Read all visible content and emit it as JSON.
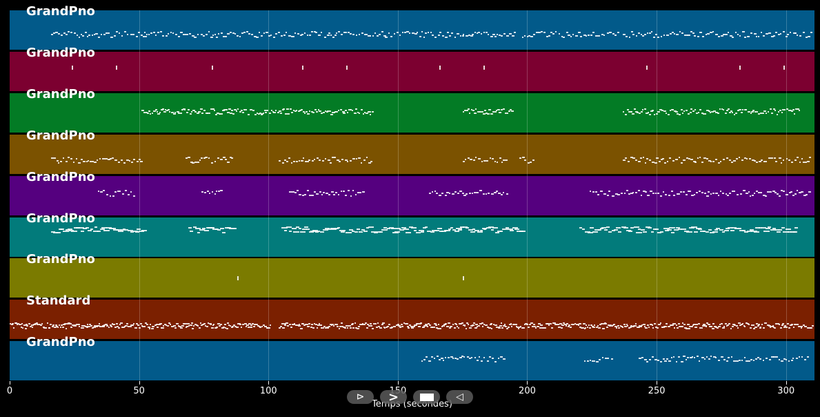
{
  "chart_data": {
    "type": "scatter",
    "subtype": "piano-roll",
    "title": "",
    "xlabel": "Temps (secondes)",
    "ylabel": "",
    "xlim": [
      0,
      311
    ],
    "x_ticks": [
      0,
      50,
      100,
      150,
      200,
      250,
      300
    ],
    "grid": "vertical",
    "tracks": [
      {
        "name": "GrandPno",
        "color": "#025a8a",
        "segments": [
          [
            16,
            52
          ],
          [
            52,
            98
          ],
          [
            98,
            145
          ],
          [
            145,
            175
          ],
          [
            175,
            195
          ],
          [
            198,
            235
          ],
          [
            237,
            310
          ]
        ],
        "dense_note_ranges": [
          [
            175,
            194
          ]
        ]
      },
      {
        "name": "GrandPno",
        "color": "#7c0030",
        "note_times": [
          24,
          41,
          78,
          113,
          130,
          166,
          183,
          246,
          282,
          299
        ]
      },
      {
        "name": "GrandPno",
        "color": "#037b25",
        "segments": [
          [
            51,
            140
          ],
          [
            175,
            194
          ],
          [
            237,
            305
          ]
        ]
      },
      {
        "name": "GrandPno",
        "color": "#7b5200",
        "segments": [
          [
            16,
            51
          ],
          [
            68,
            86
          ],
          [
            104,
            140
          ],
          [
            175,
            192
          ],
          [
            197,
            202
          ],
          [
            237,
            309
          ]
        ]
      },
      {
        "name": "GrandPno",
        "color": "#55007f",
        "segments": [
          [
            34,
            48
          ],
          [
            74,
            82
          ],
          [
            108,
            137
          ],
          [
            162,
            192
          ],
          [
            224,
            309
          ]
        ]
      },
      {
        "name": "GrandPno",
        "color": "#027b7b",
        "segments": [
          [
            16,
            51
          ],
          [
            69,
            86
          ],
          [
            105,
            198
          ],
          [
            220,
            304
          ]
        ]
      },
      {
        "name": "GrandPno",
        "color": "#7b7b00",
        "note_times": [
          88,
          175
        ]
      },
      {
        "name": "Standard",
        "color": "#7b2000",
        "segments": [
          [
            0,
            15
          ],
          [
            15,
            101
          ],
          [
            104,
            310
          ]
        ]
      },
      {
        "name": "GrandPno",
        "color": "#025a8a",
        "segments": [
          [
            159,
            191
          ],
          [
            222,
            233
          ],
          [
            243,
            309
          ]
        ]
      }
    ]
  },
  "tracks": [
    {
      "label": "GrandPno"
    },
    {
      "label": "GrandPno"
    },
    {
      "label": "GrandPno"
    },
    {
      "label": "GrandPno"
    },
    {
      "label": "GrandPno"
    },
    {
      "label": "GrandPno"
    },
    {
      "label": "GrandPno"
    },
    {
      "label": "Standard"
    },
    {
      "label": "GrandPno"
    }
  ],
  "xaxis": {
    "label": "Temps (secondes)",
    "ticks": [
      "0",
      "50",
      "100",
      "150",
      "200",
      "250",
      "300"
    ]
  },
  "controls": {
    "play": "⊳",
    "forward": ">",
    "stop": "■",
    "back": "◁"
  }
}
